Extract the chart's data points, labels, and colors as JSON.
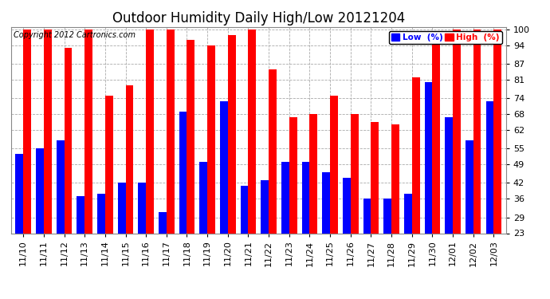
{
  "title": "Outdoor Humidity Daily High/Low 20121204",
  "copyright": "Copyright 2012 Cartronics.com",
  "dates": [
    "11/10",
    "11/11",
    "11/12",
    "11/13",
    "11/14",
    "11/15",
    "11/16",
    "11/17",
    "11/18",
    "11/19",
    "11/20",
    "11/21",
    "11/22",
    "11/23",
    "11/24",
    "11/25",
    "11/26",
    "11/27",
    "11/28",
    "11/29",
    "11/30",
    "12/01",
    "12/02",
    "12/03"
  ],
  "high": [
    100,
    100,
    93,
    100,
    75,
    79,
    100,
    100,
    96,
    94,
    98,
    100,
    85,
    67,
    68,
    75,
    68,
    65,
    64,
    82,
    95,
    100,
    100,
    100
  ],
  "low": [
    53,
    55,
    58,
    37,
    38,
    42,
    42,
    31,
    69,
    50,
    73,
    41,
    43,
    50,
    50,
    46,
    44,
    36,
    36,
    38,
    80,
    67,
    58,
    73
  ],
  "high_color": "#ff0000",
  "low_color": "#0000ff",
  "bg_color": "#ffffff",
  "grid_color": "#aaaaaa",
  "yticks": [
    23,
    29,
    36,
    42,
    49,
    55,
    62,
    68,
    74,
    81,
    87,
    94,
    100
  ],
  "ymin": 23,
  "ymax": 101,
  "bar_width": 0.38,
  "title_fontsize": 12,
  "tick_fontsize": 8,
  "copyright_fontsize": 7,
  "legend_label_low": "Low  (%)",
  "legend_label_high": "High  (%)"
}
